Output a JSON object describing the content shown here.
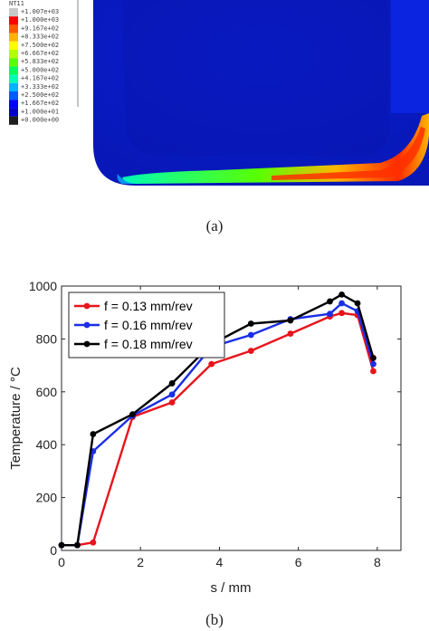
{
  "contour": {
    "legend_title": "NT11",
    "legend_values": [
      "+1.007e+03",
      "+1.000e+03",
      "+9.167e+02",
      "+8.333e+02",
      "+7.500e+02",
      "+6.667e+02",
      "+5.833e+02",
      "+5.000e+02",
      "+4.167e+02",
      "+3.333e+02",
      "+2.500e+02",
      "+1.667e+02",
      "+1.000e+01",
      "+0.000e+00"
    ],
    "legend_colors": [
      "#c8c8c8",
      "#ff0000",
      "#ff5a00",
      "#ffb400",
      "#ffff00",
      "#b4ff00",
      "#5aff00",
      "#00ff5a",
      "#00ffb4",
      "#00b4ff",
      "#005aff",
      "#0000ff",
      "#0000c8",
      "#1e1e1e"
    ],
    "body_color": "#0a1ed2",
    "caption": "(a)"
  },
  "chart_data": {
    "type": "line",
    "xlabel": "s / mm",
    "ylabel": "Temperature / °C",
    "xlim": [
      0,
      8.6
    ],
    "ylim": [
      0,
      1000
    ],
    "xticks": [
      0,
      2,
      4,
      6,
      8
    ],
    "yticks": [
      0,
      200,
      400,
      600,
      800,
      1000
    ],
    "legend_position": "top-left",
    "grid": false,
    "series": [
      {
        "name": "f = 0.13 mm/rev",
        "color": "#e8141c",
        "x": [
          0.0,
          0.4,
          0.8,
          1.8,
          2.8,
          3.8,
          4.8,
          5.8,
          6.8,
          7.1,
          7.5,
          7.9
        ],
        "y": [
          20,
          20,
          30,
          505,
          560,
          705,
          755,
          820,
          885,
          898,
          890,
          678
        ]
      },
      {
        "name": "f = 0.16 mm/rev",
        "color": "#1a2ee6",
        "x": [
          0.0,
          0.4,
          0.8,
          1.8,
          2.8,
          3.8,
          4.8,
          5.8,
          6.8,
          7.1,
          7.5,
          7.9
        ],
        "y": [
          20,
          20,
          375,
          510,
          590,
          770,
          815,
          875,
          895,
          935,
          905,
          705
        ]
      },
      {
        "name": "f = 0.18 mm/rev",
        "color": "#000000",
        "x": [
          0.0,
          0.4,
          0.8,
          1.8,
          2.8,
          3.8,
          4.8,
          5.8,
          6.8,
          7.1,
          7.5,
          7.9
        ],
        "y": [
          20,
          20,
          440,
          515,
          632,
          780,
          858,
          870,
          942,
          968,
          935,
          728
        ]
      }
    ],
    "caption": "(b)"
  }
}
